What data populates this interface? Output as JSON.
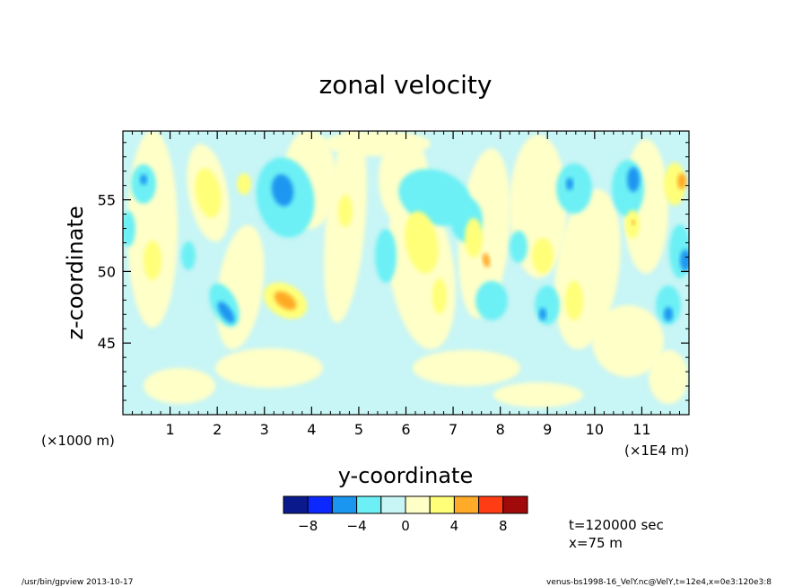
{
  "chart_data": {
    "type": "heatmap",
    "title": "zonal velocity",
    "xlabel": "y-coordinate",
    "ylabel": "z-coordinate",
    "x_unit_left": "(×1000 m)",
    "x_unit_right": "(×1E4 m)",
    "xlim": [
      0,
      12
    ],
    "ylim": [
      40,
      59.8
    ],
    "x_ticks": [
      1,
      2,
      3,
      4,
      5,
      6,
      7,
      8,
      9,
      10,
      11
    ],
    "x_tick_labels": [
      "1",
      "2",
      "3",
      "4",
      "5",
      "6",
      "7",
      "8",
      "9",
      "10",
      "11"
    ],
    "y_ticks": [
      45,
      50,
      55
    ],
    "y_tick_labels": [
      "45",
      "50",
      "55"
    ],
    "colorbar": {
      "levels": [
        -10,
        -8,
        -6,
        -4,
        -2,
        0,
        2,
        4,
        6,
        8,
        10
      ],
      "colors": [
        "#0a1a8c",
        "#0a28ff",
        "#1a96f0",
        "#6cf0f5",
        "#c8f5f5",
        "#ffffc8",
        "#ffff78",
        "#ffaa28",
        "#ff3c14",
        "#a00a0a"
      ],
      "tick_values": [
        -8,
        -4,
        0,
        4,
        8
      ],
      "tick_labels": [
        "−8",
        "−4",
        "0",
        "4",
        "8"
      ]
    },
    "features": [
      {
        "y": 3.3,
        "z": 56.0,
        "value": -8
      },
      {
        "y": 2.2,
        "z": 47.5,
        "value": -7
      },
      {
        "y": 10.8,
        "z": 56.5,
        "value": -6
      },
      {
        "y": 11.95,
        "z": 51.0,
        "value": -6
      },
      {
        "y": 3.5,
        "z": 48.0,
        "value": 6
      },
      {
        "y": 7.7,
        "z": 51.0,
        "value": 5
      },
      {
        "y": 11.9,
        "z": 56.5,
        "value": 5
      },
      {
        "y": 1.5,
        "z": 55.0,
        "value": 3
      },
      {
        "y": 6.0,
        "z": 52.0,
        "value": 3
      },
      {
        "y": 3.3,
        "z": 55.0,
        "value": -4
      },
      {
        "y": 6.2,
        "z": 55.0,
        "value": -4
      }
    ]
  },
  "annotations": {
    "time": "t=120000 sec",
    "position": "x=75 m"
  },
  "footer": {
    "left": "/usr/bin/gpview   2013-10-17",
    "right": "venus-bs1998-16_VelY.nc@VelY,t=12e4,x=0e3:120e3:8"
  }
}
